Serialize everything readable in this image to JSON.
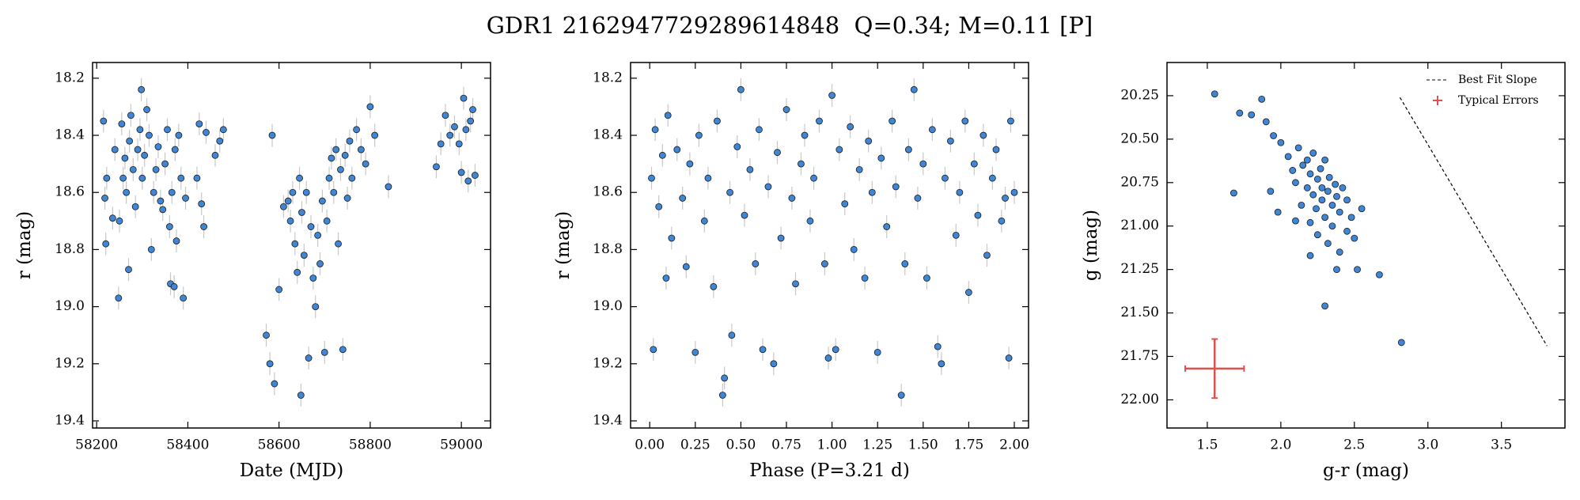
{
  "title": "GDR1 2162947729289614848  Q=0.34; M=0.11 [P]",
  "chart_data": [
    {
      "type": "scatter",
      "xlabel": "Date (MJD)",
      "ylabel": "r (mag)",
      "color": "#3f87d6",
      "yerr": 0.04,
      "xlim": [
        58191,
        59064
      ],
      "ylim": [
        19.425,
        18.145
      ],
      "xticks": [
        58200,
        58400,
        58600,
        58800,
        59000
      ],
      "yticks": [
        18.2,
        18.4,
        18.6,
        18.8,
        {
          "value": 19,
          "label": "19.0"
        },
        19.2,
        19.4
      ],
      "x": [
        58215,
        58218,
        58220,
        58222,
        58235,
        58240,
        58248,
        58250,
        58255,
        58258,
        58262,
        58265,
        58270,
        58272,
        58275,
        58280,
        58285,
        58290,
        58295,
        58298,
        58300,
        58305,
        58310,
        58315,
        58320,
        58325,
        58330,
        58335,
        58340,
        58345,
        58350,
        58355,
        58360,
        58362,
        58365,
        58370,
        58372,
        58375,
        58380,
        58385,
        58390,
        58395,
        58420,
        58425,
        58430,
        58435,
        58440,
        58460,
        58470,
        58478,
        58572,
        58580,
        58585,
        58590,
        58600,
        58610,
        58620,
        58625,
        58630,
        58635,
        58640,
        58645,
        58648,
        58650,
        58655,
        58660,
        58665,
        58670,
        58675,
        58680,
        58685,
        58690,
        58695,
        58700,
        58705,
        58710,
        58715,
        58720,
        58725,
        58730,
        58735,
        58740,
        58745,
        58750,
        58755,
        58760,
        58770,
        58780,
        58790,
        58800,
        58810,
        58840,
        58945,
        58955,
        58965,
        58975,
        58985,
        58995,
        59000,
        59005,
        59010,
        59015,
        59020,
        59025,
        59030
      ],
      "y": [
        18.35,
        18.62,
        18.78,
        18.55,
        18.69,
        18.45,
        18.97,
        18.7,
        18.36,
        18.55,
        18.48,
        18.6,
        18.87,
        18.42,
        18.33,
        18.52,
        18.65,
        18.45,
        18.38,
        18.24,
        18.55,
        18.47,
        18.31,
        18.4,
        18.8,
        18.6,
        18.52,
        18.44,
        18.63,
        18.66,
        18.5,
        18.38,
        18.72,
        18.92,
        18.6,
        18.93,
        18.45,
        18.77,
        18.4,
        18.55,
        18.97,
        18.62,
        18.55,
        18.36,
        18.64,
        18.72,
        18.39,
        18.47,
        18.42,
        18.38,
        19.1,
        19.2,
        18.4,
        19.27,
        18.94,
        18.65,
        18.63,
        18.7,
        18.6,
        18.78,
        18.88,
        18.55,
        19.31,
        18.67,
        18.82,
        18.6,
        19.18,
        18.72,
        18.9,
        19.0,
        18.75,
        18.85,
        18.63,
        19.16,
        18.7,
        18.55,
        18.48,
        18.6,
        18.45,
        18.78,
        18.52,
        19.15,
        18.47,
        18.62,
        18.42,
        18.55,
        18.38,
        18.45,
        18.5,
        18.3,
        18.4,
        18.58,
        18.51,
        18.43,
        18.33,
        18.4,
        18.37,
        18.43,
        18.53,
        18.27,
        18.38,
        18.56,
        18.35,
        18.31,
        18.54
      ]
    },
    {
      "type": "scatter",
      "xlabel": "Phase (P=3.21 d)",
      "ylabel": "r (mag)",
      "color": "#3f87d6",
      "yerr": 0.04,
      "xlim": [
        -0.105,
        2.078
      ],
      "ylim": [
        19.425,
        18.145
      ],
      "xticks": [
        {
          "value": 0,
          "label": "0.00"
        },
        0.25,
        {
          "value": 0.5,
          "label": "0.50"
        },
        0.75,
        {
          "value": 1,
          "label": "1.00"
        },
        1.25,
        {
          "value": 1.5,
          "label": "1.50"
        },
        1.75,
        {
          "value": 2,
          "label": "2.00"
        }
      ],
      "yticks": [
        18.2,
        18.4,
        18.6,
        18.8,
        {
          "value": 19,
          "label": "19.0"
        },
        19.2,
        19.4
      ],
      "x": [
        0.01,
        0.02,
        0.03,
        0.05,
        0.07,
        0.09,
        0.1,
        0.12,
        0.15,
        0.18,
        0.2,
        0.22,
        0.25,
        0.27,
        0.3,
        0.32,
        0.35,
        0.37,
        0.4,
        0.41,
        0.44,
        0.45,
        0.48,
        0.5,
        0.52,
        0.55,
        0.58,
        0.6,
        0.62,
        0.65,
        0.68,
        0.7,
        0.72,
        0.75,
        0.78,
        0.8,
        0.83,
        0.85,
        0.88,
        0.9,
        0.93,
        0.96,
        0.98,
        1.0,
        1.02,
        1.04,
        1.07,
        1.1,
        1.12,
        1.15,
        1.18,
        1.2,
        1.22,
        1.25,
        1.27,
        1.3,
        1.33,
        1.35,
        1.38,
        1.4,
        1.42,
        1.45,
        1.47,
        1.5,
        1.52,
        1.55,
        1.58,
        1.6,
        1.62,
        1.65,
        1.68,
        1.7,
        1.73,
        1.75,
        1.78,
        1.8,
        1.83,
        1.85,
        1.88,
        1.9,
        1.93,
        1.95,
        1.97,
        1.98,
        2.0
      ],
      "y": [
        18.55,
        19.15,
        18.38,
        18.65,
        18.47,
        18.9,
        18.33,
        18.76,
        18.45,
        18.62,
        18.86,
        18.5,
        19.16,
        18.4,
        18.7,
        18.55,
        18.93,
        18.35,
        19.31,
        19.25,
        18.6,
        19.1,
        18.44,
        18.24,
        18.68,
        18.52,
        18.85,
        18.38,
        19.15,
        18.58,
        19.2,
        18.46,
        18.76,
        18.31,
        18.62,
        18.92,
        18.5,
        18.4,
        18.7,
        18.55,
        18.35,
        18.85,
        19.18,
        18.26,
        19.15,
        18.45,
        18.64,
        18.37,
        18.8,
        18.52,
        18.9,
        18.42,
        18.6,
        19.16,
        18.48,
        18.72,
        18.35,
        18.58,
        19.31,
        18.85,
        18.45,
        18.24,
        18.62,
        18.5,
        18.9,
        18.38,
        19.14,
        19.2,
        18.55,
        18.42,
        18.75,
        18.6,
        18.35,
        18.95,
        18.5,
        18.68,
        18.4,
        18.82,
        18.55,
        18.45,
        18.7,
        18.62,
        19.18,
        18.35,
        18.6
      ]
    },
    {
      "type": "scatter",
      "xlabel": "g-r (mag)",
      "ylabel": "g (mag)",
      "color": "#3f87d6",
      "xlim": [
        1.226,
        3.932
      ],
      "ylim": [
        22.162,
        20.059
      ],
      "xticks": [
        1.5,
        {
          "value": 2,
          "label": "2.0"
        },
        2.5,
        {
          "value": 3,
          "label": "3.0"
        },
        3.5
      ],
      "yticks": [
        20.25,
        {
          "value": 20.5,
          "label": "20.50"
        },
        20.75,
        {
          "value": 21,
          "label": "21.00"
        },
        21.25,
        {
          "value": 21.5,
          "label": "21.50"
        },
        21.75,
        {
          "value": 22,
          "label": "22.00"
        }
      ],
      "x": [
        1.55,
        1.72,
        1.87,
        1.8,
        1.95,
        2.0,
        1.9,
        1.68,
        1.93,
        1.98,
        2.05,
        2.08,
        2.1,
        2.12,
        2.14,
        2.15,
        2.18,
        2.18,
        2.2,
        2.2,
        2.22,
        2.22,
        2.24,
        2.25,
        2.25,
        2.27,
        2.28,
        2.28,
        2.3,
        2.3,
        2.32,
        2.32,
        2.33,
        2.35,
        2.35,
        2.37,
        2.38,
        2.4,
        2.4,
        2.42,
        2.45,
        2.45,
        2.48,
        2.5,
        2.52,
        2.55,
        2.38,
        2.3,
        2.67,
        2.82,
        2.2,
        2.1
      ],
      "y": [
        20.24,
        20.35,
        20.27,
        20.36,
        20.48,
        20.52,
        20.4,
        20.81,
        20.8,
        20.92,
        20.6,
        20.68,
        20.75,
        20.55,
        20.88,
        20.65,
        20.78,
        20.62,
        20.7,
        20.98,
        20.82,
        20.58,
        20.9,
        20.73,
        21.05,
        20.67,
        20.85,
        20.78,
        20.95,
        20.62,
        20.8,
        21.1,
        20.72,
        20.88,
        21.0,
        20.76,
        20.83,
        20.92,
        21.15,
        20.78,
        20.85,
        21.03,
        20.95,
        21.07,
        21.25,
        20.9,
        21.25,
        21.46,
        21.28,
        21.67,
        21.17,
        20.97
      ],
      "fit_line": {
        "name": "Best Fit Slope",
        "color": "#000000",
        "x": [
          2.81,
          3.81
        ],
        "y": [
          20.26,
          21.69
        ]
      },
      "typical_error": {
        "name": "Typical Errors",
        "color": "#d9534f",
        "x": 1.55,
        "y": 21.82,
        "xerr": 0.2,
        "yerr": 0.17
      },
      "legend": "upper right"
    }
  ]
}
